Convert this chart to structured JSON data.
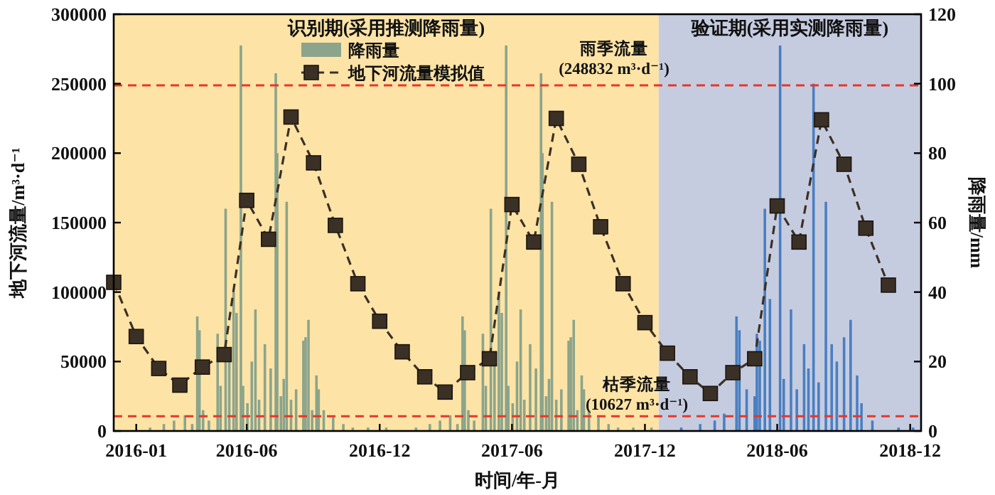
{
  "chart_data": {
    "type": "bar",
    "xlabel": "时间/年-月",
    "ylabel": "地下河流量/m³·d⁻¹",
    "y2label": "降雨量/mm",
    "xlim": [
      "2015-12-01",
      "2018-12-16"
    ],
    "xticks": [
      {
        "value": "2016-01",
        "label": "2016-01"
      },
      {
        "value": "2016-06",
        "label": "2016-06"
      },
      {
        "value": "2016-12",
        "label": "2016-12"
      },
      {
        "value": "2017-06",
        "label": "2017-06"
      },
      {
        "value": "2017-12",
        "label": "2017-12"
      },
      {
        "value": "2018-06",
        "label": "2018-06"
      },
      {
        "value": "2018-12",
        "label": "2018-12"
      }
    ],
    "ylim": [
      0,
      300000
    ],
    "yticks": [
      0,
      50000,
      100000,
      150000,
      200000,
      250000,
      300000
    ],
    "y2lim": [
      0,
      120
    ],
    "y2ticks": [
      0,
      20,
      40,
      60,
      80,
      100,
      120
    ],
    "legend": "top",
    "marker": "square",
    "line_style": "dashed",
    "bands": [
      {
        "axis": "x",
        "from": "2015-12-01",
        "to": "2017-12-20",
        "label": "识别期(采用推测降雨量)",
        "color": "#fde4a6"
      },
      {
        "axis": "x",
        "from": "2017-12-20",
        "to": "2018-12-16",
        "label": "验证期(采用实测降雨量)",
        "color": "#c6cce0"
      }
    ],
    "ref_lines": [
      {
        "axis": "y",
        "value": 248832,
        "label": "雨季流量\n(248832 m³·d⁻¹)",
        "color": "#e8362a",
        "line_style": "dashed"
      },
      {
        "axis": "y",
        "value": 10627,
        "label": "枯季流量\n(10627 m³·d⁻¹)",
        "color": "#e8362a",
        "line_style": "dashed"
      }
    ],
    "series": [
      {
        "name": "降雨量",
        "axis": "y2",
        "color": "#8ca48c",
        "x": [
          "2016-01-20",
          "2016-02-08",
          "2016-02-22",
          "2016-03-08",
          "2016-03-18",
          "2016-03-25",
          "2016-03-28",
          "2016-04-02",
          "2016-04-10",
          "2016-04-22",
          "2016-04-26",
          "2016-05-03",
          "2016-05-08",
          "2016-05-14",
          "2016-05-18",
          "2016-05-24",
          "2016-05-27",
          "2016-06-02",
          "2016-06-08",
          "2016-06-13",
          "2016-06-18",
          "2016-06-26",
          "2016-07-04",
          "2016-07-11",
          "2016-07-13",
          "2016-07-18",
          "2016-07-22",
          "2016-07-26",
          "2016-08-01",
          "2016-08-08",
          "2016-08-18",
          "2016-08-21",
          "2016-08-25",
          "2016-08-30",
          "2016-09-05",
          "2016-09-08",
          "2016-09-15",
          "2016-09-28",
          "2016-10-12",
          "2016-10-25",
          "2016-11-15",
          "2016-12-10",
          "2017-01-20",
          "2017-02-08",
          "2017-02-22",
          "2017-03-08",
          "2017-03-18",
          "2017-03-25",
          "2017-03-28",
          "2017-04-02",
          "2017-04-10",
          "2017-04-22",
          "2017-04-26",
          "2017-05-03",
          "2017-05-08",
          "2017-05-14",
          "2017-05-18",
          "2017-05-24",
          "2017-05-27",
          "2017-06-02",
          "2017-06-08",
          "2017-06-13",
          "2017-06-18",
          "2017-06-26",
          "2017-07-04",
          "2017-07-11",
          "2017-07-13",
          "2017-07-18",
          "2017-07-22",
          "2017-07-26",
          "2017-08-01",
          "2017-08-08",
          "2017-08-18",
          "2017-08-21",
          "2017-08-25",
          "2017-08-30",
          "2017-09-05",
          "2017-09-08",
          "2017-09-15",
          "2017-09-28",
          "2017-10-12",
          "2017-10-25",
          "2017-11-15",
          "2017-12-10"
        ],
        "values": [
          1,
          2,
          3,
          4.5,
          2,
          33,
          29,
          6,
          3,
          28,
          13,
          64,
          20,
          40,
          34,
          111,
          13,
          8,
          20,
          35,
          9,
          25,
          18,
          103,
          80,
          10,
          15,
          66,
          9,
          12,
          26,
          27,
          32,
          6,
          16,
          12,
          6,
          4,
          2,
          1,
          1,
          1,
          1,
          2,
          3,
          4.5,
          2,
          33,
          29,
          6,
          3,
          28,
          13,
          64,
          20,
          40,
          34,
          111,
          13,
          8,
          20,
          35,
          9,
          25,
          18,
          103,
          80,
          10,
          15,
          66,
          9,
          12,
          26,
          27,
          32,
          6,
          16,
          12,
          6,
          4,
          2,
          1,
          1,
          1
        ]
      },
      {
        "axis": "y2",
        "color": "#4a7fc1",
        "x": [
          "2018-01-20",
          "2018-02-15",
          "2018-03-07",
          "2018-03-20",
          "2018-04-06",
          "2018-04-10",
          "2018-04-20",
          "2018-05-01",
          "2018-05-04",
          "2018-05-08",
          "2018-05-15",
          "2018-05-22",
          "2018-06-05",
          "2018-06-10",
          "2018-06-20",
          "2018-06-28",
          "2018-07-08",
          "2018-07-14",
          "2018-07-21",
          "2018-07-28",
          "2018-08-07",
          "2018-08-15",
          "2018-08-22",
          "2018-09-01",
          "2018-09-10",
          "2018-09-19",
          "2018-09-25",
          "2018-10-10",
          "2018-11-15",
          "2018-12-05"
        ],
        "values": [
          1,
          2,
          3,
          5,
          33,
          29,
          12,
          10,
          28,
          26,
          64,
          38,
          111,
          15,
          35,
          12,
          25,
          18,
          100,
          14,
          66,
          25,
          20,
          27,
          32,
          16,
          8,
          3,
          1,
          1
        ]
      },
      {
        "name": "地下河流量模拟值",
        "type": "line",
        "color": "#3b3025",
        "x": [
          "2015-12",
          "2016-01",
          "2016-02",
          "2016-03",
          "2016-04",
          "2016-05",
          "2016-06",
          "2016-07",
          "2016-08",
          "2016-09",
          "2016-10",
          "2016-11",
          "2016-12",
          "2017-01",
          "2017-02",
          "2017-03",
          "2017-04",
          "2017-05",
          "2017-06",
          "2017-07",
          "2017-08",
          "2017-09",
          "2017-10",
          "2017-11",
          "2017-12",
          "2018-01",
          "2018-02",
          "2018-03",
          "2018-04",
          "2018-05",
          "2018-06",
          "2018-07",
          "2018-08",
          "2018-09",
          "2018-10",
          "2018-11"
        ],
        "values": [
          107000,
          68000,
          45000,
          33000,
          46000,
          55000,
          166000,
          138000,
          226000,
          193000,
          148000,
          106000,
          79000,
          57000,
          39000,
          28000,
          42000,
          52000,
          163000,
          136000,
          225000,
          192000,
          147000,
          106000,
          78000,
          56000,
          39000,
          27000,
          42000,
          52000,
          162000,
          136000,
          224000,
          192000,
          146000,
          105000
        ]
      }
    ]
  }
}
